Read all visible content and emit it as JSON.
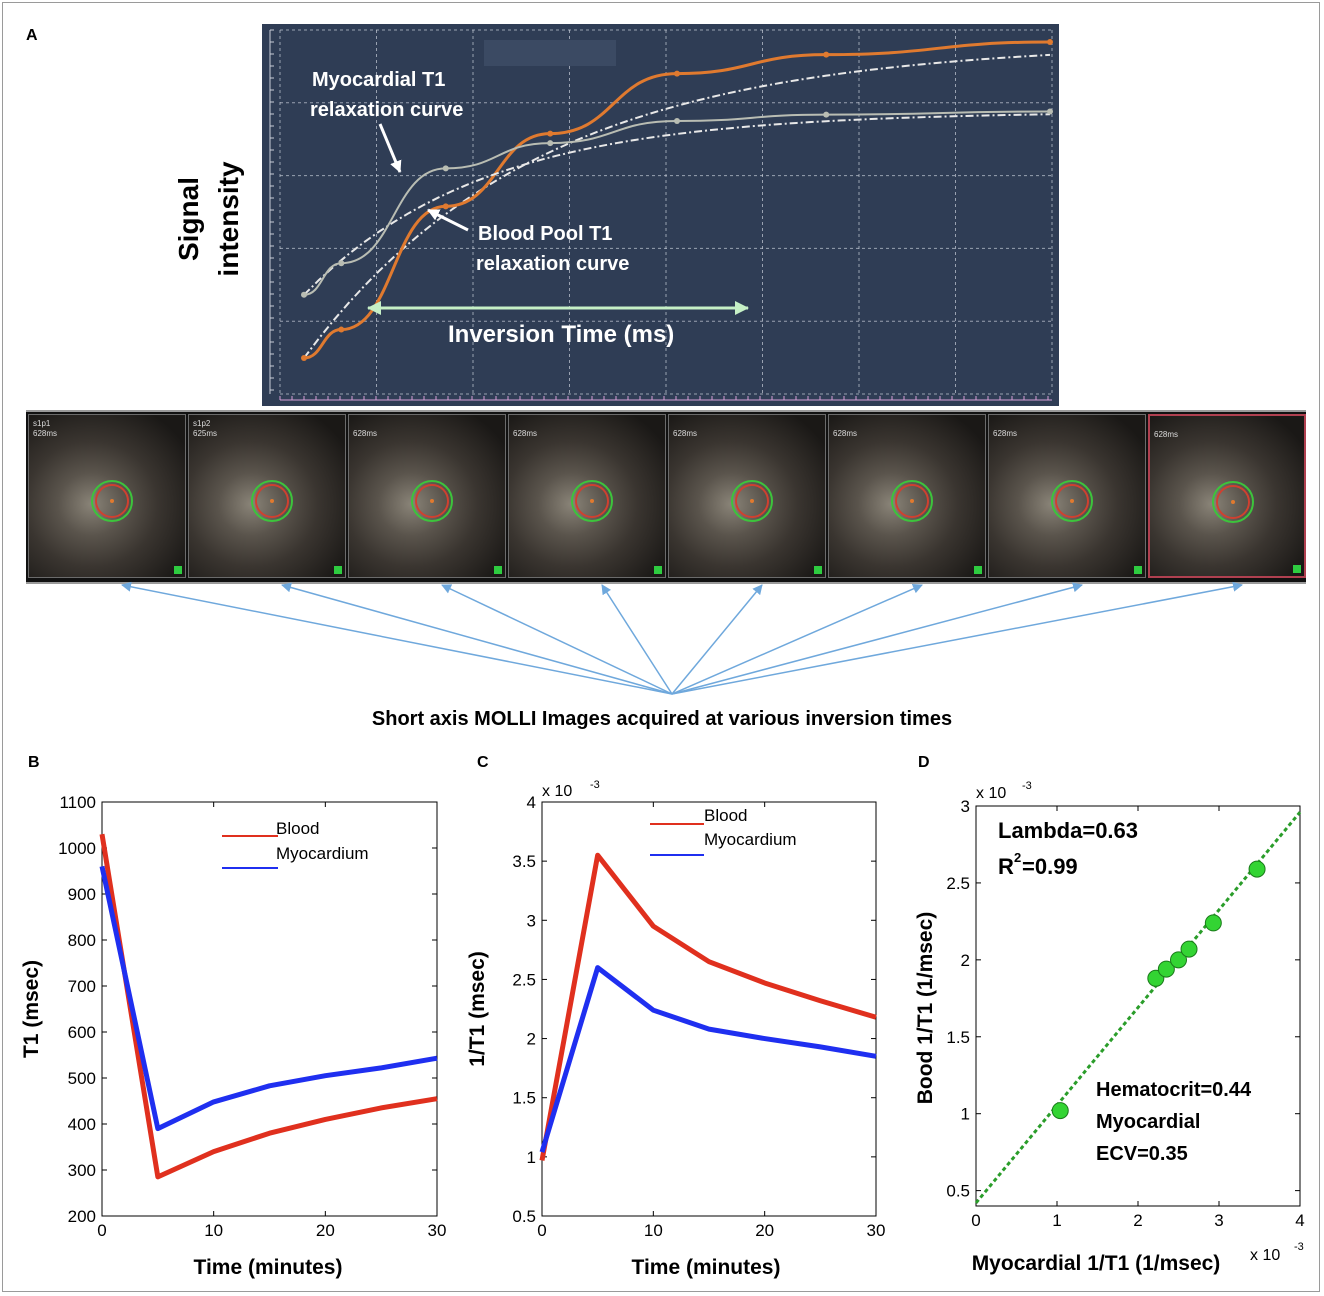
{
  "panel_a": {
    "letter": "A",
    "ylabel_line1": "Signal",
    "ylabel_line2": "intensity",
    "myo_label_line1": "Myocardial T1",
    "myo_label_line2": "relaxation curve",
    "blood_label_line1": "Blood Pool T1",
    "blood_label_line2": "relaxation curve",
    "xlabel": "Inversion Time (ms)",
    "colors": {
      "background": "#2f3d55",
      "blood": "#e07a2f",
      "myocardium": "#b9bdb3"
    }
  },
  "molli_strip": {
    "caption": "Short axis MOLLI Images acquired at various inversion times",
    "images": [
      {
        "label": "s1p1",
        "ti": "628ms"
      },
      {
        "label": "s1p2",
        "ti": "625ms"
      },
      {
        "label": "",
        "ti": "628ms"
      },
      {
        "label": "",
        "ti": "628ms"
      },
      {
        "label": "",
        "ti": "628ms"
      },
      {
        "label": "",
        "ti": "628ms"
      },
      {
        "label": "",
        "ti": "628ms"
      },
      {
        "label": "",
        "ti": "628ms"
      }
    ]
  },
  "chart_data": [
    {
      "panel": "A",
      "type": "line",
      "xlabel": "Inversion Time (ms)",
      "ylabel": "Signal intensity",
      "grid": true,
      "x": [
        0,
        0.05,
        0.19,
        0.33,
        0.5,
        0.7,
        1.0
      ],
      "series": [
        {
          "name": "Blood Pool T1 relaxation curve",
          "color": "#e07a2f",
          "values": [
            0.0,
            0.09,
            0.48,
            0.71,
            0.9,
            0.96,
            1.0
          ]
        },
        {
          "name": "Myocardial T1 relaxation curve",
          "color": "#b9bdb3",
          "values": [
            0.2,
            0.3,
            0.6,
            0.68,
            0.75,
            0.77,
            0.78
          ]
        }
      ]
    },
    {
      "panel": "B",
      "type": "line",
      "xlabel": "Time (minutes)",
      "ylabel": "T1 (msec)",
      "xlim": [
        0,
        30
      ],
      "ylim": [
        200,
        1100
      ],
      "xticks": [
        "0",
        "10",
        "20",
        "30"
      ],
      "yticks": [
        "200",
        "300",
        "400",
        "500",
        "600",
        "700",
        "800",
        "900",
        "1000",
        "1100"
      ],
      "legend_position": "top-right",
      "series": [
        {
          "name": "Blood",
          "color": "#e0301e",
          "x": [
            0,
            5,
            10,
            15,
            20,
            25,
            30
          ],
          "y": [
            1030,
            285,
            340,
            380,
            410,
            435,
            455
          ]
        },
        {
          "name": "Myocardium",
          "color": "#1f2ff0",
          "x": [
            0,
            5,
            10,
            15,
            20,
            25,
            30
          ],
          "y": [
            960,
            390,
            448,
            483,
            505,
            522,
            543
          ]
        }
      ]
    },
    {
      "panel": "C",
      "type": "line",
      "xlabel": "Time (minutes)",
      "ylabel": "1/T1 (msec)",
      "multiplier": "x 10",
      "multiplier_exp": "-3",
      "xlim": [
        0,
        30
      ],
      "ylim": [
        0.5,
        4
      ],
      "xticks": [
        "0",
        "10",
        "20",
        "30"
      ],
      "yticks": [
        "0.5",
        "1",
        "1.5",
        "2",
        "2.5",
        "3",
        "3.5",
        "4"
      ],
      "legend_position": "top-right",
      "series": [
        {
          "name": "Blood",
          "color": "#e0301e",
          "x": [
            0,
            5,
            10,
            15,
            20,
            25,
            30
          ],
          "y": [
            0.97,
            3.55,
            2.95,
            2.65,
            2.47,
            2.32,
            2.18
          ]
        },
        {
          "name": "Myocardium",
          "color": "#1f2ff0",
          "x": [
            0,
            5,
            10,
            15,
            20,
            25,
            30
          ],
          "y": [
            1.04,
            2.6,
            2.24,
            2.08,
            2.0,
            1.93,
            1.85
          ]
        }
      ]
    },
    {
      "panel": "D",
      "type": "scatter",
      "xlabel": "Myocardial 1/T1 (1/msec)",
      "ylabel": "Bood 1/T1 (1/msec)",
      "x_multiplier": "x 10",
      "x_multiplier_exp": "-3",
      "y_multiplier": "x 10",
      "y_multiplier_exp": "-3",
      "xlim": [
        0,
        4
      ],
      "ylim": [
        0.4,
        3
      ],
      "xticks": [
        "0",
        "1",
        "2",
        "3",
        "4"
      ],
      "yticks": [
        "0.5",
        "1",
        "1.5",
        "2",
        "2.5",
        "3"
      ],
      "annotation_lambda": "Lambda=0.63",
      "annotation_r2_prefix": "R",
      "annotation_r2_sup": "2",
      "annotation_r2_value": "=0.99",
      "annotation_hct": "Hematocrit=0.44",
      "annotation_myo": "Myocardial",
      "annotation_ecv": "ECV=0.35",
      "points": [
        {
          "x": 1.04,
          "y": 1.02
        },
        {
          "x": 2.22,
          "y": 1.88
        },
        {
          "x": 2.35,
          "y": 1.94
        },
        {
          "x": 2.5,
          "y": 2.0
        },
        {
          "x": 2.63,
          "y": 2.07
        },
        {
          "x": 2.93,
          "y": 2.24
        },
        {
          "x": 3.47,
          "y": 2.59
        }
      ],
      "fit_line": {
        "x": [
          0,
          4
        ],
        "y": [
          0.42,
          2.96
        ]
      },
      "point_color": "#33d433",
      "fit_color": "#2a9d2a"
    }
  ],
  "panel_letters": {
    "b": "B",
    "c": "C",
    "d": "D"
  }
}
